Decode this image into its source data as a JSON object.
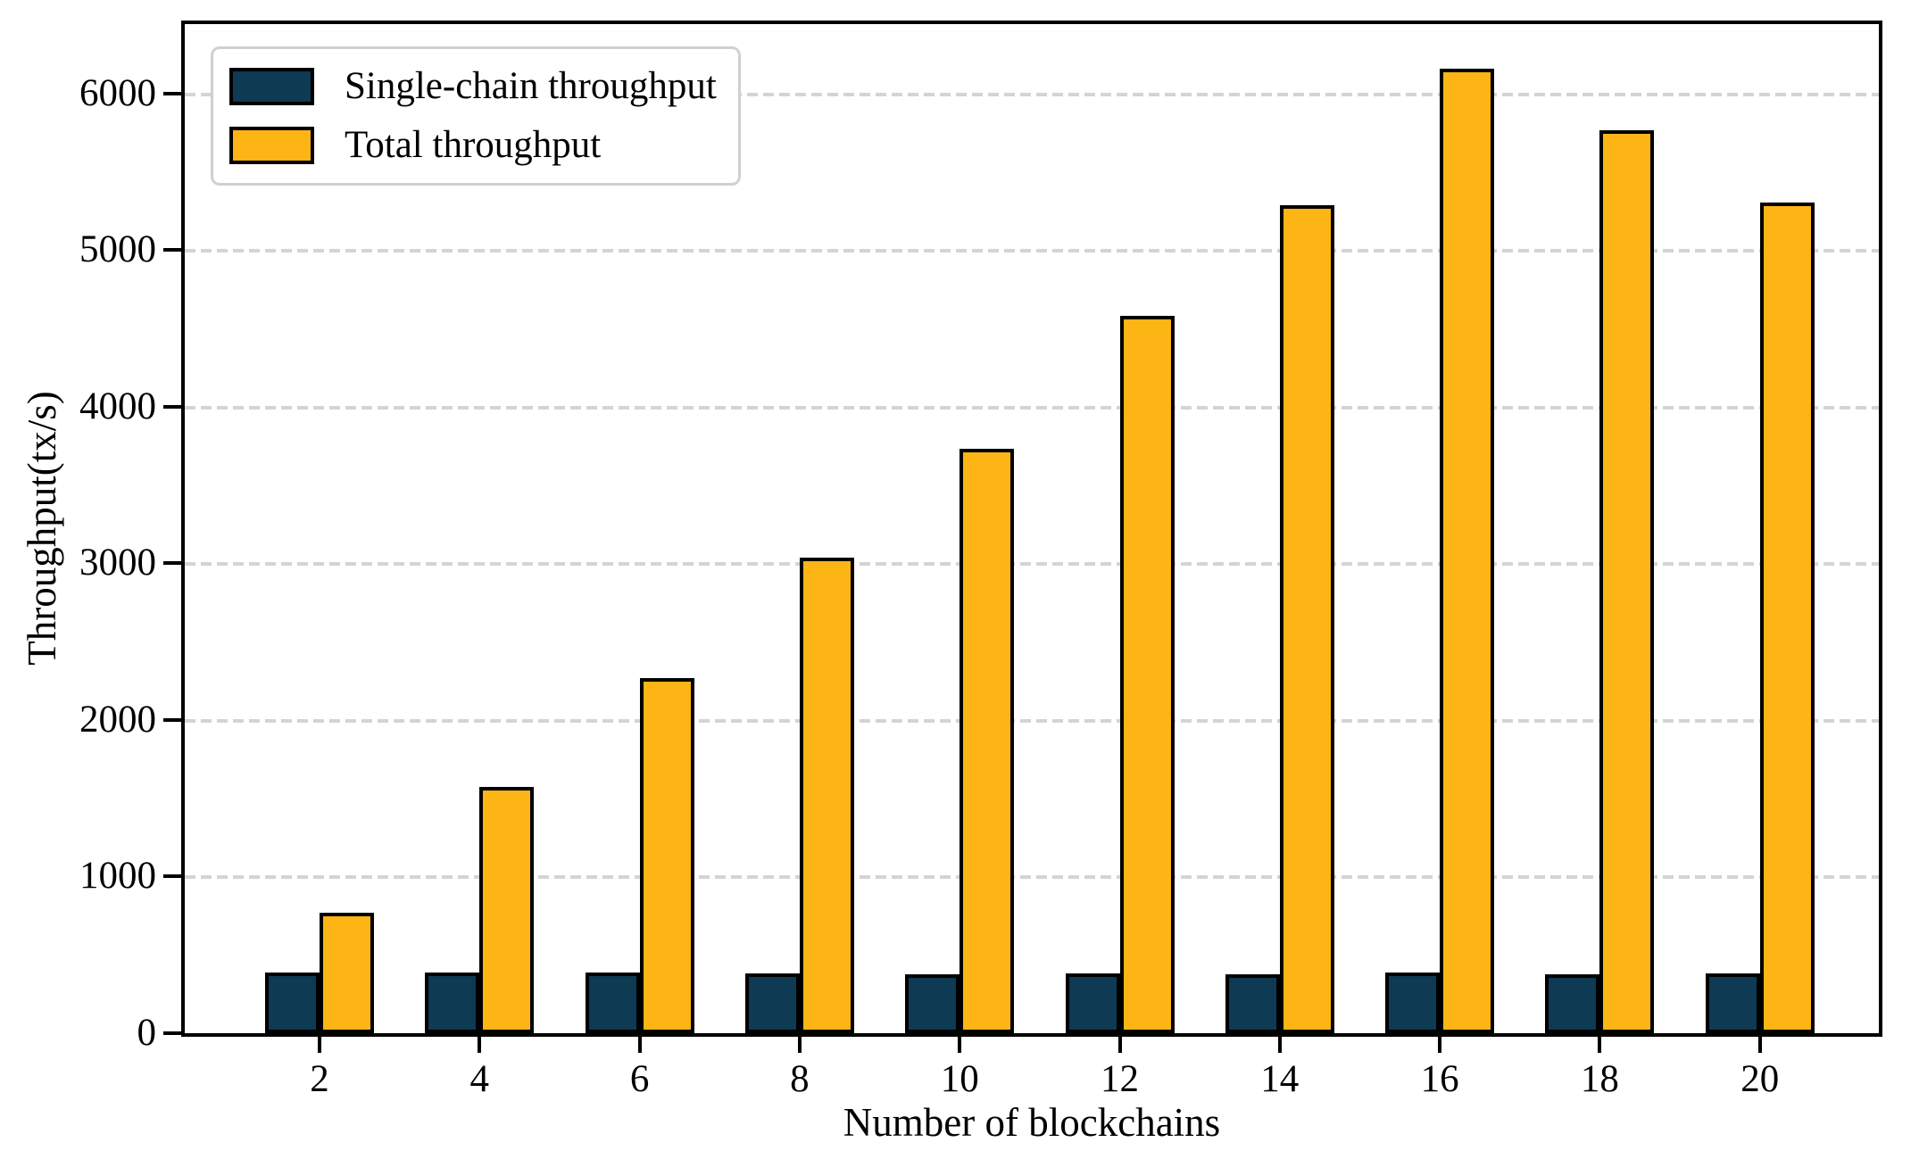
{
  "chart_data": {
    "type": "bar",
    "title": "",
    "xlabel": "Number of blockchains",
    "ylabel": "Throughput(tx/s)",
    "categories": [
      2,
      4,
      6,
      8,
      10,
      12,
      14,
      16,
      18,
      20
    ],
    "series": [
      {
        "name": "Single-chain throughput",
        "color": "#0e3a53",
        "values": [
          385,
          390,
          385,
          380,
          375,
          380,
          375,
          385,
          375,
          380
        ]
      },
      {
        "name": "Total throughput",
        "color": "#fdb515",
        "values": [
          770,
          1570,
          2265,
          3035,
          3730,
          4580,
          5285,
          6160,
          5765,
          5305
        ]
      }
    ],
    "ylim": [
      0,
      6443
    ],
    "yticks": [
      0,
      1000,
      2000,
      3000,
      4000,
      5000,
      6000
    ],
    "xlim_note": "bars paired around each category tick",
    "grid": "horizontal-dashed",
    "grid_color": "#d4d4d4",
    "bar_edge_color": "#000000",
    "background_color": "#ffffff",
    "legend_position": "upper-left",
    "legend_border_color": "#d0d0d0"
  }
}
